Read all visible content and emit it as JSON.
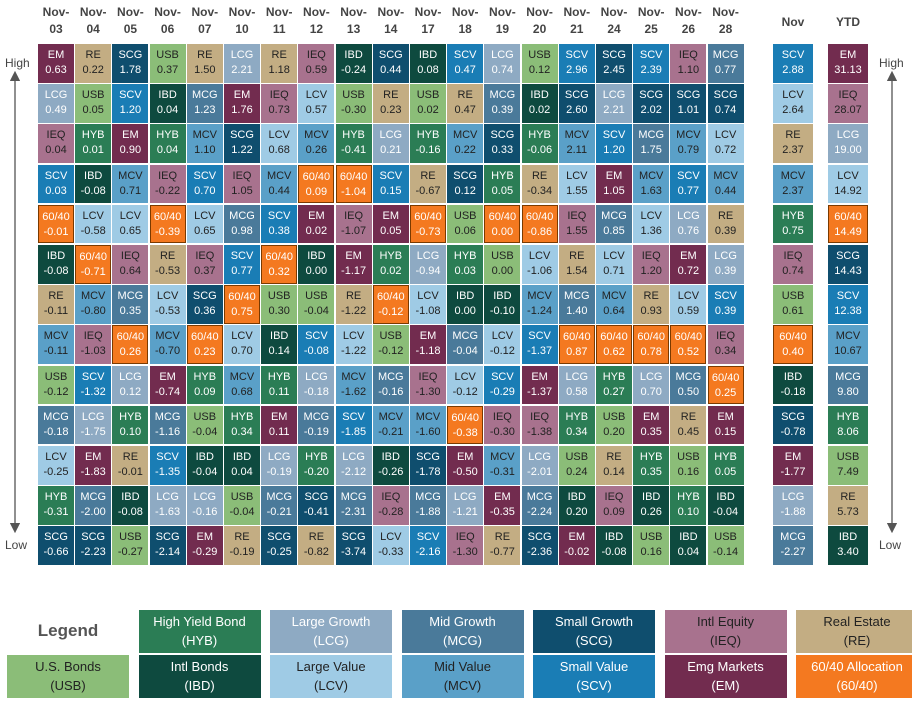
{
  "side": {
    "high": "High",
    "low": "Low"
  },
  "colors": {
    "EM": {
      "bg": "#722c4f",
      "fg": "#fff"
    },
    "LCG": {
      "bg": "#8eaac3",
      "fg": "#fff"
    },
    "IEQ": {
      "bg": "#a8728e",
      "fg": "#222"
    },
    "SCV": {
      "bg": "#1a7db5",
      "fg": "#fff"
    },
    "60/40": {
      "bg": "#f47920",
      "fg": "#fff"
    },
    "IBD": {
      "bg": "#0e4a3f",
      "fg": "#fff"
    },
    "RE": {
      "bg": "#c3ad83",
      "fg": "#222"
    },
    "MCV": {
      "bg": "#5aa0c8",
      "fg": "#222"
    },
    "USB": {
      "bg": "#8bbd78",
      "fg": "#222"
    },
    "MCG": {
      "bg": "#4a7a9a",
      "fg": "#fff"
    },
    "LCV": {
      "bg": "#9fcbe5",
      "fg": "#222"
    },
    "HYB": {
      "bg": "#2b7d55",
      "fg": "#fff"
    },
    "SCG": {
      "bg": "#0f4e6e",
      "fg": "#fff"
    }
  },
  "columns": [
    {
      "top": "Nov-",
      "bottom": "03",
      "cells": [
        [
          "EM",
          "0.63"
        ],
        [
          "LCG",
          "0.49"
        ],
        [
          "IEQ",
          "0.04"
        ],
        [
          "SCV",
          "0.03"
        ],
        [
          "60/40",
          "-0.01"
        ],
        [
          "IBD",
          "-0.08"
        ],
        [
          "RE",
          "-0.11"
        ],
        [
          "MCV",
          "-0.11"
        ],
        [
          "USB",
          "-0.12"
        ],
        [
          "MCG",
          "-0.18"
        ],
        [
          "LCV",
          "-0.25"
        ],
        [
          "HYB",
          "-0.31"
        ],
        [
          "SCG",
          "-0.66"
        ]
      ]
    },
    {
      "top": "Nov-",
      "bottom": "04",
      "cells": [
        [
          "RE",
          "0.22"
        ],
        [
          "USB",
          "0.05"
        ],
        [
          "HYB",
          "0.01"
        ],
        [
          "IBD",
          "-0.08"
        ],
        [
          "LCV",
          "-0.58"
        ],
        [
          "60/40",
          "-0.71"
        ],
        [
          "MCV",
          "-0.80"
        ],
        [
          "IEQ",
          "-1.03"
        ],
        [
          "SCV",
          "-1.32"
        ],
        [
          "LCG",
          "-1.75"
        ],
        [
          "EM",
          "-1.83"
        ],
        [
          "MCG",
          "-2.00"
        ],
        [
          "SCG",
          "-2.23"
        ]
      ]
    },
    {
      "top": "Nov-",
      "bottom": "05",
      "cells": [
        [
          "SCG",
          "1.78"
        ],
        [
          "SCV",
          "1.20"
        ],
        [
          "EM",
          "0.90"
        ],
        [
          "MCV",
          "0.71"
        ],
        [
          "LCV",
          "0.65"
        ],
        [
          "IEQ",
          "0.64"
        ],
        [
          "MCG",
          "0.35"
        ],
        [
          "60/40",
          "0.26"
        ],
        [
          "LCG",
          "0.12"
        ],
        [
          "HYB",
          "0.10"
        ],
        [
          "RE",
          "-0.01"
        ],
        [
          "IBD",
          "-0.08"
        ],
        [
          "USB",
          "-0.27"
        ]
      ]
    },
    {
      "top": "Nov-",
      "bottom": "06",
      "cells": [
        [
          "USB",
          "0.37"
        ],
        [
          "IBD",
          "0.04"
        ],
        [
          "HYB",
          "0.04"
        ],
        [
          "IEQ",
          "-0.22"
        ],
        [
          "60/40",
          "-0.39"
        ],
        [
          "RE",
          "-0.53"
        ],
        [
          "LCV",
          "-0.53"
        ],
        [
          "MCV",
          "-0.70"
        ],
        [
          "EM",
          "-0.74"
        ],
        [
          "MCG",
          "-1.16"
        ],
        [
          "SCV",
          "-1.35"
        ],
        [
          "LCG",
          "-1.63"
        ],
        [
          "SCG",
          "-2.14"
        ]
      ]
    },
    {
      "top": "Nov-",
      "bottom": "07",
      "cells": [
        [
          "RE",
          "1.50"
        ],
        [
          "MCG",
          "1.23"
        ],
        [
          "MCV",
          "1.10"
        ],
        [
          "SCV",
          "0.70"
        ],
        [
          "LCV",
          "0.65"
        ],
        [
          "IEQ",
          "0.37"
        ],
        [
          "SCG",
          "0.36"
        ],
        [
          "60/40",
          "0.23"
        ],
        [
          "HYB",
          "0.09"
        ],
        [
          "USB",
          "-0.04"
        ],
        [
          "IBD",
          "-0.04"
        ],
        [
          "LCG",
          "-0.16"
        ],
        [
          "EM",
          "-0.29"
        ]
      ]
    },
    {
      "top": "Nov-",
      "bottom": "10",
      "cells": [
        [
          "LCG",
          "2.21"
        ],
        [
          "EM",
          "1.76"
        ],
        [
          "SCG",
          "1.22"
        ],
        [
          "IEQ",
          "1.05"
        ],
        [
          "MCG",
          "0.98"
        ],
        [
          "SCV",
          "0.77"
        ],
        [
          "60/40",
          "0.75"
        ],
        [
          "LCV",
          "0.70"
        ],
        [
          "MCV",
          "0.68"
        ],
        [
          "HYB",
          "0.34"
        ],
        [
          "IBD",
          "0.04"
        ],
        [
          "USB",
          "-0.04"
        ],
        [
          "RE",
          "-0.19"
        ]
      ]
    },
    {
      "top": "Nov-",
      "bottom": "11",
      "cells": [
        [
          "RE",
          "1.18"
        ],
        [
          "IEQ",
          "0.73"
        ],
        [
          "LCV",
          "0.68"
        ],
        [
          "MCV",
          "0.44"
        ],
        [
          "SCV",
          "0.38"
        ],
        [
          "60/40",
          "0.32"
        ],
        [
          "USB",
          "0.30"
        ],
        [
          "IBD",
          "0.14"
        ],
        [
          "HYB",
          "0.11"
        ],
        [
          "EM",
          "0.11"
        ],
        [
          "LCG",
          "-0.19"
        ],
        [
          "MCG",
          "-0.21"
        ],
        [
          "SCG",
          "-0.25"
        ]
      ]
    },
    {
      "top": "Nov-",
      "bottom": "12",
      "cells": [
        [
          "IEQ",
          "0.59"
        ],
        [
          "LCV",
          "0.57"
        ],
        [
          "MCV",
          "0.26"
        ],
        [
          "60/40",
          "0.09"
        ],
        [
          "EM",
          "0.02"
        ],
        [
          "IBD",
          "0.00"
        ],
        [
          "USB",
          "-0.04"
        ],
        [
          "SCV",
          "-0.08"
        ],
        [
          "LCG",
          "-0.18"
        ],
        [
          "MCG",
          "-0.19"
        ],
        [
          "HYB",
          "-0.20"
        ],
        [
          "SCG",
          "-0.41"
        ],
        [
          "RE",
          "-0.82"
        ]
      ]
    },
    {
      "top": "Nov-",
      "bottom": "13",
      "cells": [
        [
          "IBD",
          "-0.24"
        ],
        [
          "USB",
          "-0.30"
        ],
        [
          "HYB",
          "-0.41"
        ],
        [
          "60/40",
          "-1.04"
        ],
        [
          "IEQ",
          "-1.07"
        ],
        [
          "EM",
          "-1.17"
        ],
        [
          "RE",
          "-1.22"
        ],
        [
          "LCV",
          "-1.22"
        ],
        [
          "MCV",
          "-1.62"
        ],
        [
          "SCV",
          "-1.85"
        ],
        [
          "LCG",
          "-2.12"
        ],
        [
          "MCG",
          "-2.31"
        ],
        [
          "SCG",
          "-3.74"
        ]
      ]
    },
    {
      "top": "Nov-",
      "bottom": "14",
      "cells": [
        [
          "SCG",
          "0.44"
        ],
        [
          "RE",
          "0.23"
        ],
        [
          "LCG",
          "0.21"
        ],
        [
          "SCV",
          "0.15"
        ],
        [
          "EM",
          "0.05"
        ],
        [
          "HYB",
          "0.02"
        ],
        [
          "60/40",
          "-0.12"
        ],
        [
          "USB",
          "-0.12"
        ],
        [
          "MCG",
          "-0.16"
        ],
        [
          "MCV",
          "-0.21"
        ],
        [
          "IBD",
          "-0.26"
        ],
        [
          "IEQ",
          "-0.28"
        ],
        [
          "LCV",
          "-0.33"
        ]
      ]
    },
    {
      "top": "Nov-",
      "bottom": "17",
      "cells": [
        [
          "IBD",
          "0.08"
        ],
        [
          "USB",
          "0.02"
        ],
        [
          "HYB",
          "-0.16"
        ],
        [
          "RE",
          "-0.67"
        ],
        [
          "60/40",
          "-0.73"
        ],
        [
          "LCG",
          "-0.94"
        ],
        [
          "LCV",
          "-1.08"
        ],
        [
          "EM",
          "-1.18"
        ],
        [
          "IEQ",
          "-1.30"
        ],
        [
          "MCV",
          "-1.60"
        ],
        [
          "SCG",
          "-1.78"
        ],
        [
          "MCG",
          "-1.88"
        ],
        [
          "SCV",
          "-2.16"
        ]
      ]
    },
    {
      "top": "Nov-",
      "bottom": "18",
      "cells": [
        [
          "SCV",
          "0.47"
        ],
        [
          "RE",
          "0.47"
        ],
        [
          "MCV",
          "0.22"
        ],
        [
          "SCG",
          "0.12"
        ],
        [
          "USB",
          "0.06"
        ],
        [
          "HYB",
          "0.03"
        ],
        [
          "IBD",
          "0.00"
        ],
        [
          "MCG",
          "-0.04"
        ],
        [
          "LCV",
          "-0.12"
        ],
        [
          "60/40",
          "-0.38"
        ],
        [
          "EM",
          "-0.50"
        ],
        [
          "LCG",
          "-1.21"
        ],
        [
          "IEQ",
          "-1.30"
        ]
      ]
    },
    {
      "top": "Nov-",
      "bottom": "19",
      "cells": [
        [
          "LCG",
          "0.74"
        ],
        [
          "MCG",
          "0.39"
        ],
        [
          "SCG",
          "0.33"
        ],
        [
          "HYB",
          "0.05"
        ],
        [
          "60/40",
          "0.00"
        ],
        [
          "USB",
          "0.00"
        ],
        [
          "IBD",
          "-0.10"
        ],
        [
          "LCV",
          "-0.12"
        ],
        [
          "SCV",
          "-0.29"
        ],
        [
          "IEQ",
          "-0.30"
        ],
        [
          "MCV",
          "-0.31"
        ],
        [
          "EM",
          "-0.35"
        ],
        [
          "RE",
          "-0.77"
        ]
      ]
    },
    {
      "top": "Nov-",
      "bottom": "20",
      "cells": [
        [
          "USB",
          "0.12"
        ],
        [
          "IBD",
          "0.02"
        ],
        [
          "HYB",
          "-0.06"
        ],
        [
          "RE",
          "-0.34"
        ],
        [
          "60/40",
          "-0.86"
        ],
        [
          "LCV",
          "-1.06"
        ],
        [
          "MCV",
          "-1.24"
        ],
        [
          "SCV",
          "-1.37"
        ],
        [
          "EM",
          "-1.37"
        ],
        [
          "IEQ",
          "-1.38"
        ],
        [
          "LCG",
          "-2.01"
        ],
        [
          "MCG",
          "-2.24"
        ],
        [
          "SCG",
          "-2.36"
        ]
      ]
    },
    {
      "top": "Nov-",
      "bottom": "21",
      "cells": [
        [
          "SCV",
          "2.96"
        ],
        [
          "SCG",
          "2.60"
        ],
        [
          "MCV",
          "2.11"
        ],
        [
          "LCV",
          "1.55"
        ],
        [
          "IEQ",
          "1.55"
        ],
        [
          "RE",
          "1.54"
        ],
        [
          "MCG",
          "1.40"
        ],
        [
          "60/40",
          "0.87"
        ],
        [
          "LCG",
          "0.58"
        ],
        [
          "HYB",
          "0.34"
        ],
        [
          "USB",
          "0.24"
        ],
        [
          "IBD",
          "0.20"
        ],
        [
          "EM",
          "-0.02"
        ]
      ]
    },
    {
      "top": "Nov-",
      "bottom": "24",
      "cells": [
        [
          "SCG",
          "2.45"
        ],
        [
          "LCG",
          "2.21"
        ],
        [
          "SCV",
          "1.20"
        ],
        [
          "EM",
          "1.05"
        ],
        [
          "MCG",
          "0.85"
        ],
        [
          "LCV",
          "0.71"
        ],
        [
          "MCV",
          "0.64"
        ],
        [
          "60/40",
          "0.62"
        ],
        [
          "HYB",
          "0.27"
        ],
        [
          "USB",
          "0.20"
        ],
        [
          "RE",
          "0.14"
        ],
        [
          "IEQ",
          "0.09"
        ],
        [
          "IBD",
          "-0.08"
        ]
      ]
    },
    {
      "top": "Nov-",
      "bottom": "25",
      "cells": [
        [
          "SCV",
          "2.39"
        ],
        [
          "SCG",
          "2.02"
        ],
        [
          "MCG",
          "1.75"
        ],
        [
          "MCV",
          "1.63"
        ],
        [
          "LCV",
          "1.36"
        ],
        [
          "IEQ",
          "1.20"
        ],
        [
          "RE",
          "0.93"
        ],
        [
          "60/40",
          "0.78"
        ],
        [
          "LCG",
          "0.70"
        ],
        [
          "EM",
          "0.35"
        ],
        [
          "HYB",
          "0.35"
        ],
        [
          "IBD",
          "0.26"
        ],
        [
          "USB",
          "0.16"
        ]
      ]
    },
    {
      "top": "Nov-",
      "bottom": "26",
      "cells": [
        [
          "IEQ",
          "1.10"
        ],
        [
          "SCG",
          "1.01"
        ],
        [
          "MCV",
          "0.79"
        ],
        [
          "SCV",
          "0.77"
        ],
        [
          "LCG",
          "0.76"
        ],
        [
          "EM",
          "0.72"
        ],
        [
          "LCV",
          "0.59"
        ],
        [
          "60/40",
          "0.52"
        ],
        [
          "MCG",
          "0.50"
        ],
        [
          "RE",
          "0.45"
        ],
        [
          "USB",
          "0.16"
        ],
        [
          "HYB",
          "0.10"
        ],
        [
          "IBD",
          "0.04"
        ]
      ]
    },
    {
      "top": "Nov-",
      "bottom": "28",
      "cells": [
        [
          "MCG",
          "0.77"
        ],
        [
          "SCG",
          "0.74"
        ],
        [
          "LCV",
          "0.72"
        ],
        [
          "MCV",
          "0.44"
        ],
        [
          "RE",
          "0.39"
        ],
        [
          "LCG",
          "0.39"
        ],
        [
          "SCV",
          "0.39"
        ],
        [
          "IEQ",
          "0.34"
        ],
        [
          "60/40",
          "0.25"
        ],
        [
          "EM",
          "0.15"
        ],
        [
          "HYB",
          "0.05"
        ],
        [
          "IBD",
          "-0.04"
        ],
        [
          "USB",
          "-0.14"
        ]
      ]
    }
  ],
  "summary": [
    {
      "header": "Nov",
      "cells": [
        [
          "SCV",
          "2.88"
        ],
        [
          "LCV",
          "2.64"
        ],
        [
          "RE",
          "2.37"
        ],
        [
          "MCV",
          "2.37"
        ],
        [
          "HYB",
          "0.75"
        ],
        [
          "IEQ",
          "0.74"
        ],
        [
          "USB",
          "0.61"
        ],
        [
          "60/40",
          "0.40"
        ],
        [
          "IBD",
          "-0.18"
        ],
        [
          "SCG",
          "-0.78"
        ],
        [
          "EM",
          "-1.77"
        ],
        [
          "LCG",
          "-1.88"
        ],
        [
          "MCG",
          "-2.27"
        ]
      ]
    },
    {
      "header": "YTD",
      "cells": [
        [
          "EM",
          "31.13"
        ],
        [
          "IEQ",
          "28.07"
        ],
        [
          "LCG",
          "19.00"
        ],
        [
          "LCV",
          "14.92"
        ],
        [
          "60/40",
          "14.49"
        ],
        [
          "SCG",
          "14.43"
        ],
        [
          "SCV",
          "12.38"
        ],
        [
          "MCV",
          "10.67"
        ],
        [
          "MCG",
          "9.80"
        ],
        [
          "HYB",
          "8.06"
        ],
        [
          "USB",
          "7.49"
        ],
        [
          "RE",
          "5.73"
        ],
        [
          "IBD",
          "3.40"
        ]
      ]
    }
  ],
  "legend": {
    "title": "Legend",
    "items": [
      {
        "key": "HYB",
        "name": "High Yield Bond",
        "abbr": "(HYB)"
      },
      {
        "key": "LCG",
        "name": "Large Growth",
        "abbr": "(LCG)"
      },
      {
        "key": "MCG",
        "name": "Mid Growth",
        "abbr": "(MCG)"
      },
      {
        "key": "SCG",
        "name": "Small Growth",
        "abbr": "(SCG)"
      },
      {
        "key": "IEQ",
        "name": "Intl Equity",
        "abbr": "(IEQ)"
      },
      {
        "key": "RE",
        "name": "Real Estate",
        "abbr": "(RE)"
      },
      {
        "key": "USB",
        "name": "U.S. Bonds",
        "abbr": "(USB)"
      },
      {
        "key": "IBD",
        "name": "Intl Bonds",
        "abbr": "(IBD)"
      },
      {
        "key": "LCV",
        "name": "Large Value",
        "abbr": "(LCV)"
      },
      {
        "key": "MCV",
        "name": "Mid Value",
        "abbr": "(MCV)"
      },
      {
        "key": "SCV",
        "name": "Small Value",
        "abbr": "(SCV)"
      },
      {
        "key": "EM",
        "name": "Emg Markets",
        "abbr": "(EM)"
      },
      {
        "key": "60/40",
        "name": "60/40 Allocation",
        "abbr": "(60/40)"
      }
    ]
  }
}
